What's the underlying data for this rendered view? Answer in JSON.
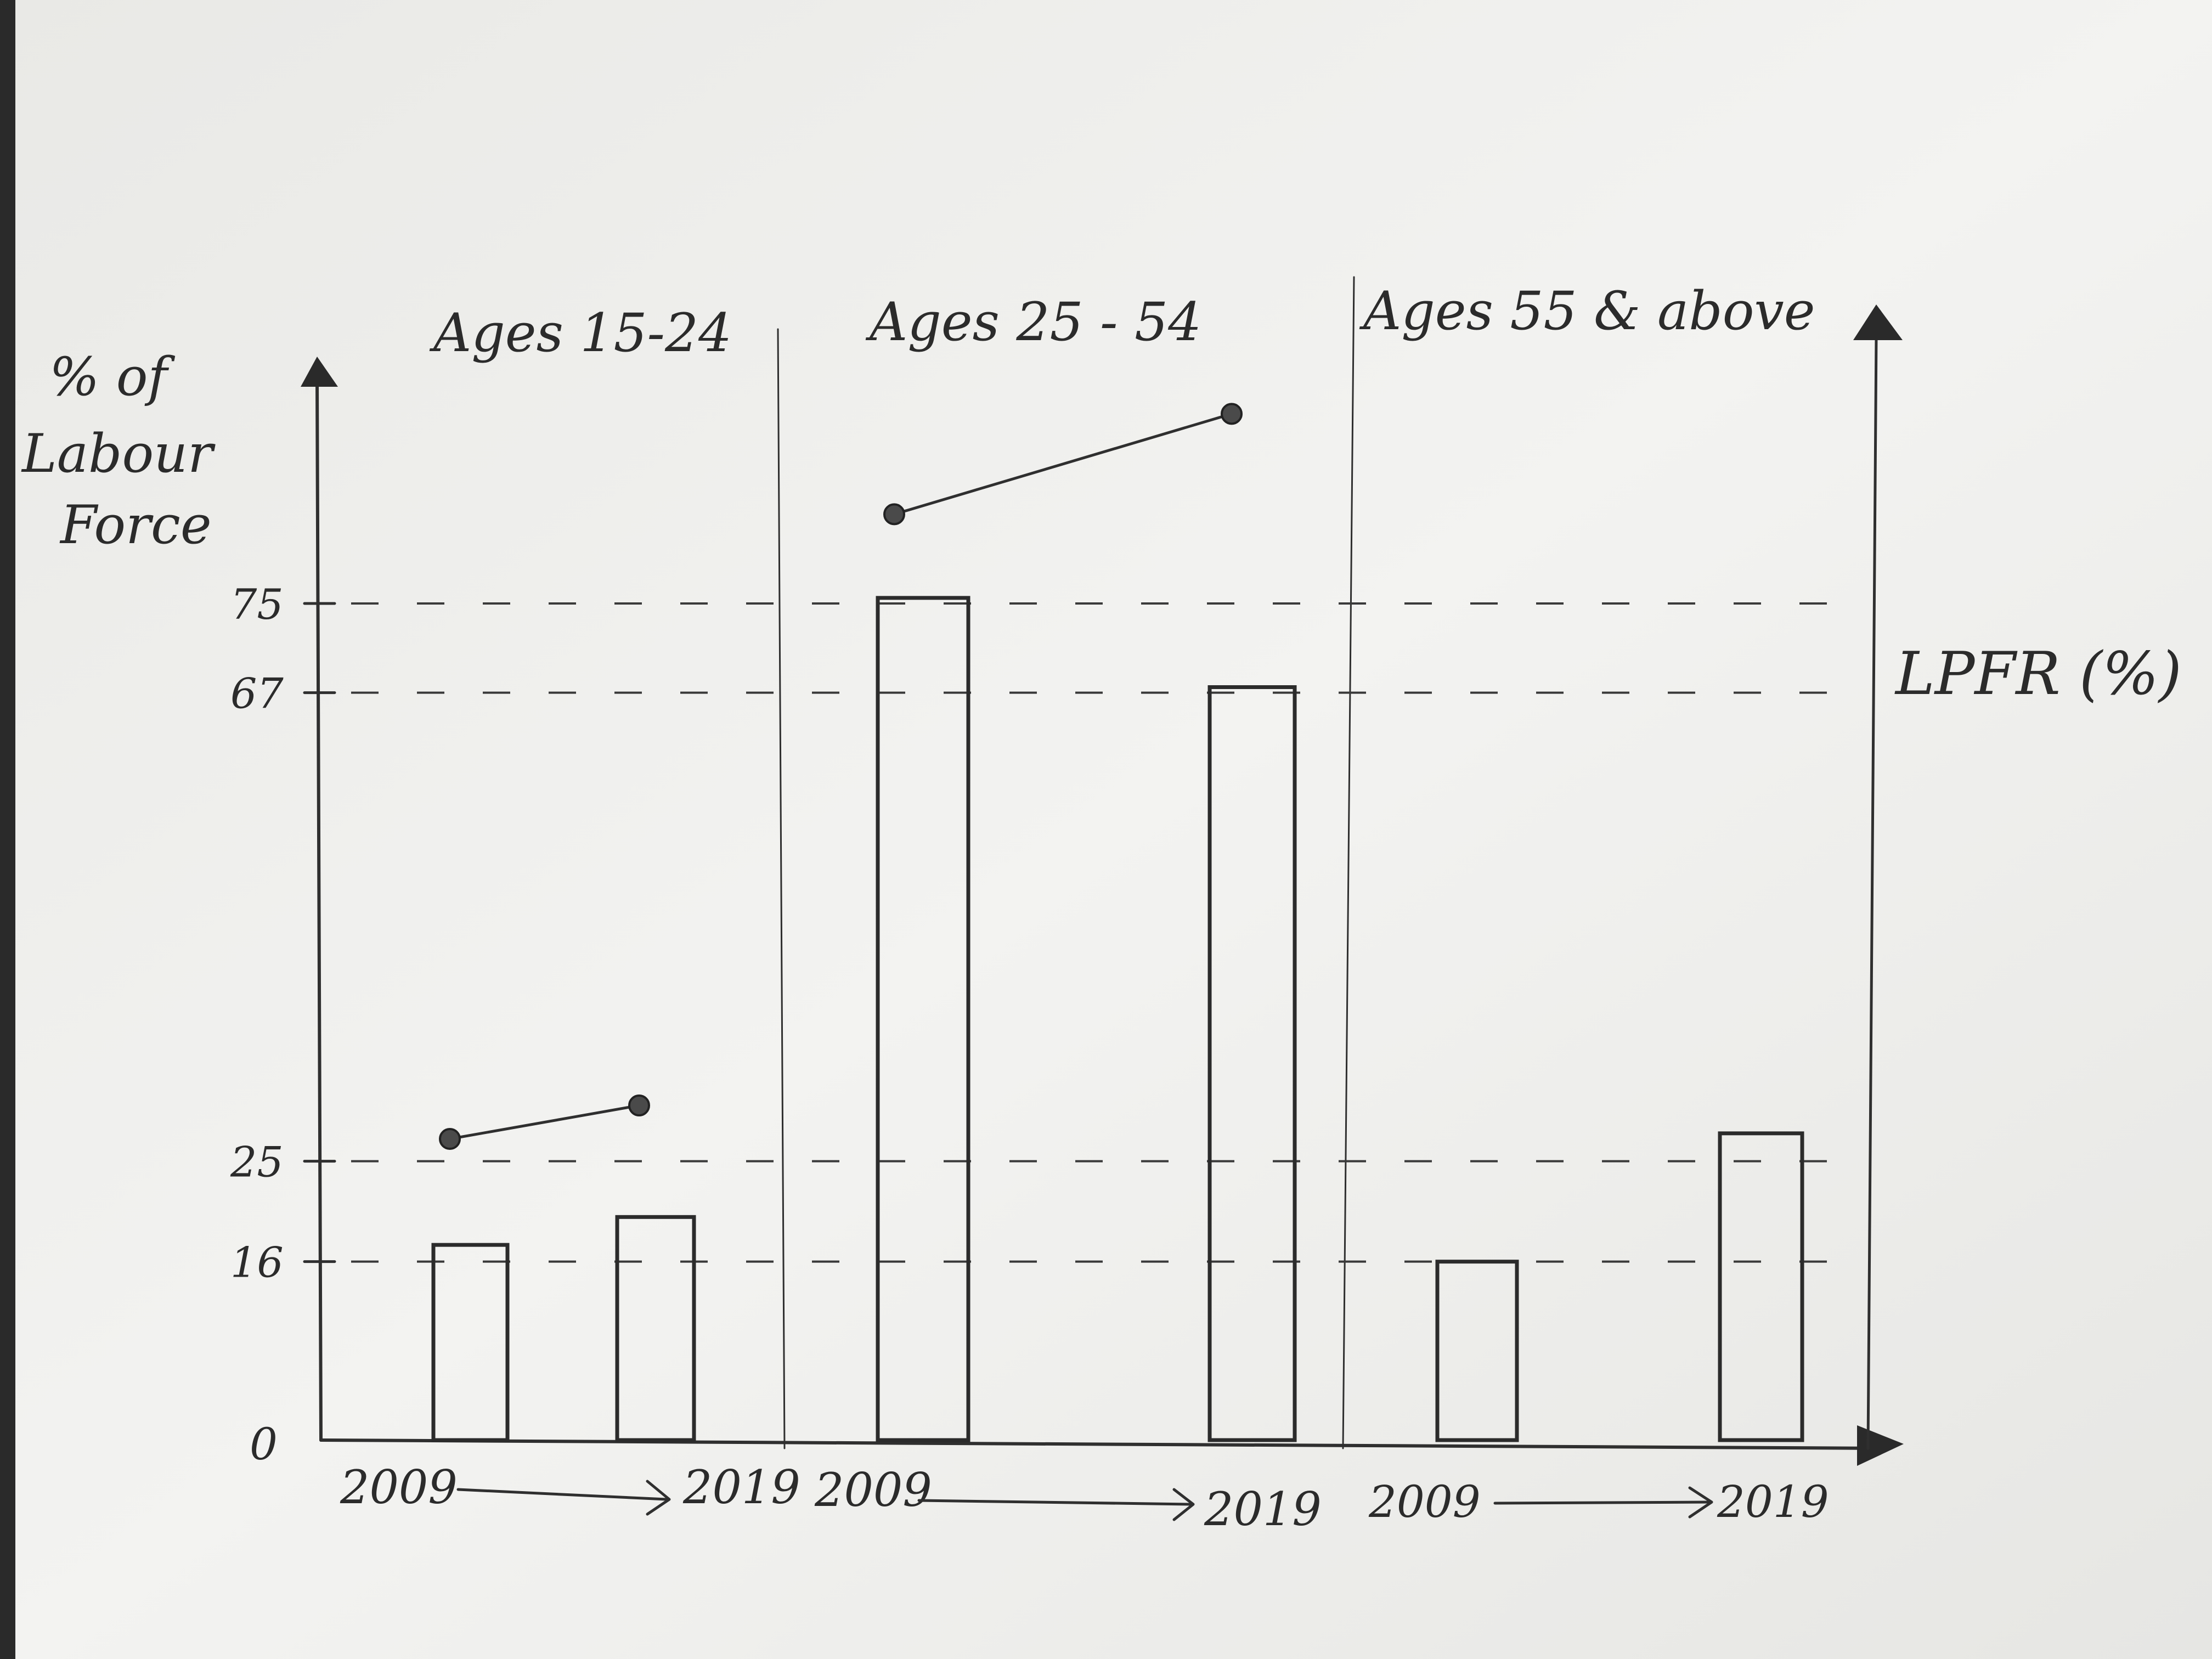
{
  "chart_data": {
    "type": "bar",
    "ylabel": "% of Labour Force",
    "y2label": "LPFR (%)",
    "zero_label": "0",
    "yticks": [
      {
        "value": 75,
        "label": "75"
      },
      {
        "value": 67,
        "label": "67"
      },
      {
        "value": 25,
        "label": "25"
      },
      {
        "value": 16,
        "label": "16"
      }
    ],
    "ylim": [
      0,
      100
    ],
    "y2lim": [
      0,
      100
    ],
    "grid": "dashed reference lines at tick values",
    "groups": [
      {
        "title": "Ages 15-24",
        "start_label": "2009",
        "end_label": "2019",
        "bars": [
          {
            "x": "2009",
            "value": 17.5
          },
          {
            "x": "2019",
            "value": 20
          }
        ],
        "lpfr": [
          {
            "x": "2009",
            "value": 27
          },
          {
            "x": "2019",
            "value": 30
          }
        ]
      },
      {
        "title": "Ages 25 - 54",
        "start_label": "2009",
        "end_label": "2019",
        "bars": [
          {
            "x": "2009",
            "value": 75.5
          },
          {
            "x": "2019",
            "value": 67.5
          }
        ],
        "lpfr": [
          {
            "x": "2009",
            "value": 83
          },
          {
            "x": "2019",
            "value": 92
          }
        ]
      },
      {
        "title": "Ages 55 & above",
        "start_label": "2009",
        "end_label": "2019",
        "bars": [
          {
            "x": "2009",
            "value": 16
          },
          {
            "x": "2019",
            "value": 27.5
          }
        ],
        "lpfr": []
      }
    ],
    "colors": {
      "paper": "#f1f1ef",
      "pencil": "#2f2f2f"
    }
  }
}
